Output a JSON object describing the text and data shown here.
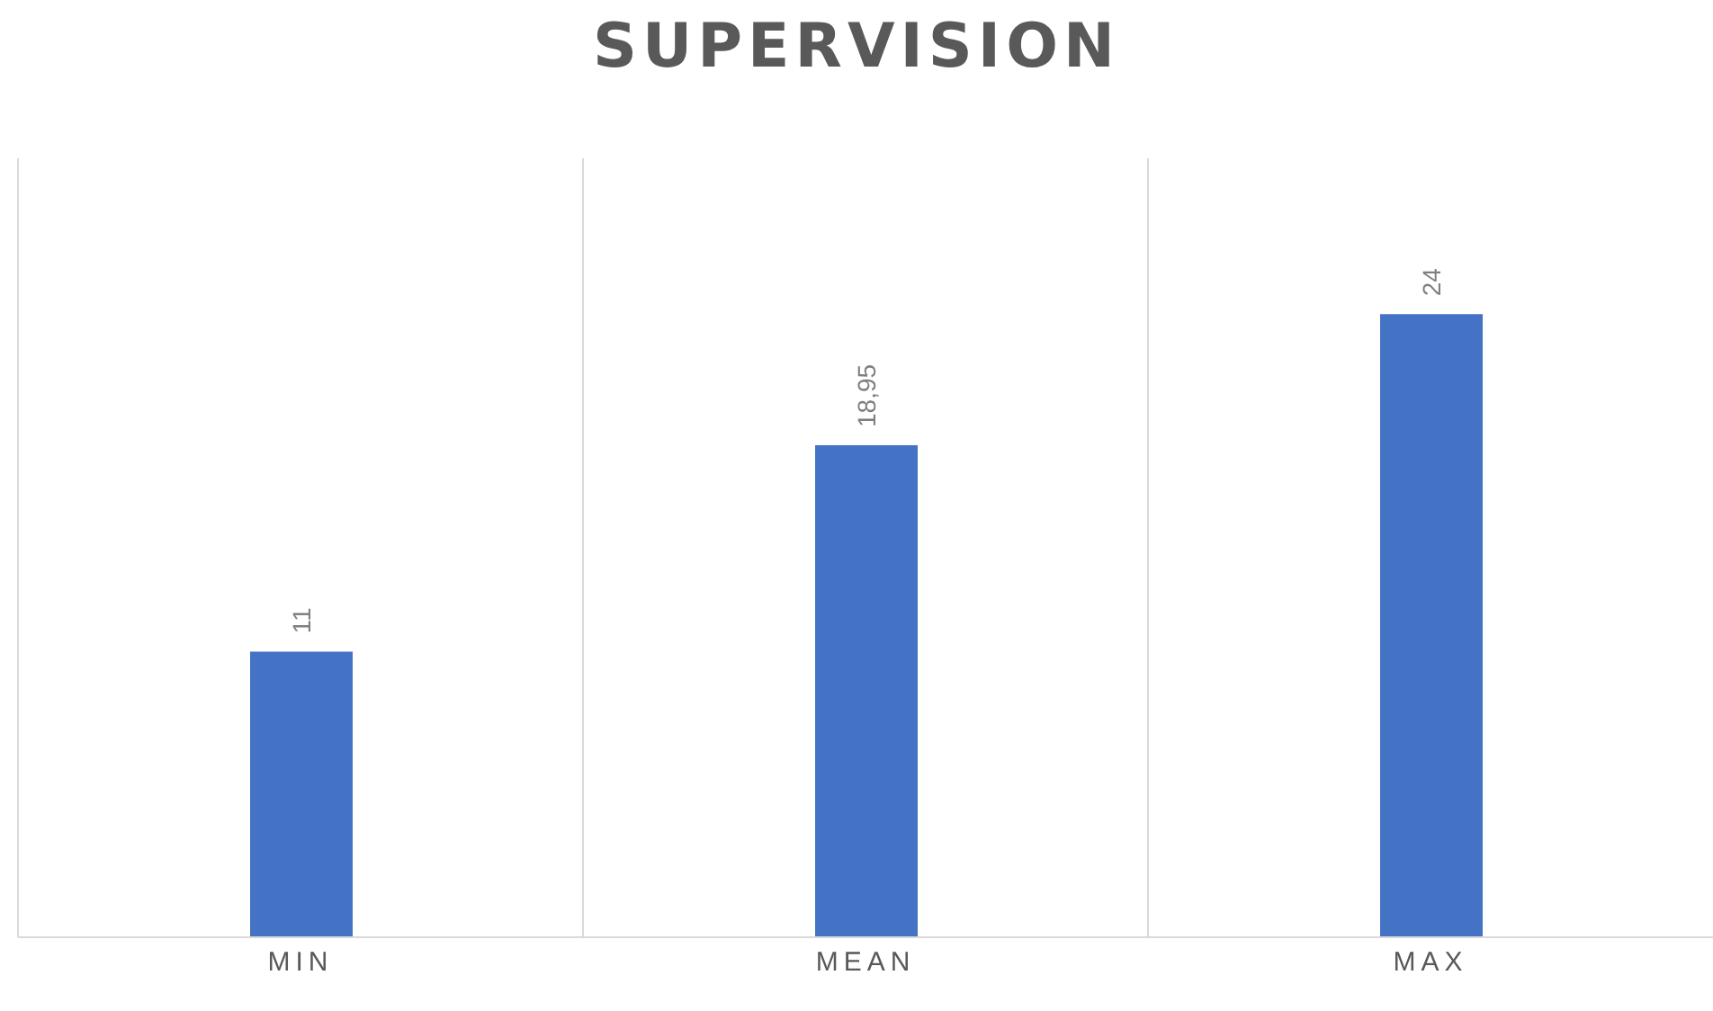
{
  "chart_data": {
    "type": "bar",
    "title": "SUPERVISION",
    "categories": [
      "MIN",
      "MEAN",
      "MAX"
    ],
    "values": [
      11,
      18.95,
      24
    ],
    "color": "#4472c4",
    "value_labels": [
      "11",
      "18,95",
      "24"
    ],
    "grid": "x",
    "tick_labels": "x"
  }
}
